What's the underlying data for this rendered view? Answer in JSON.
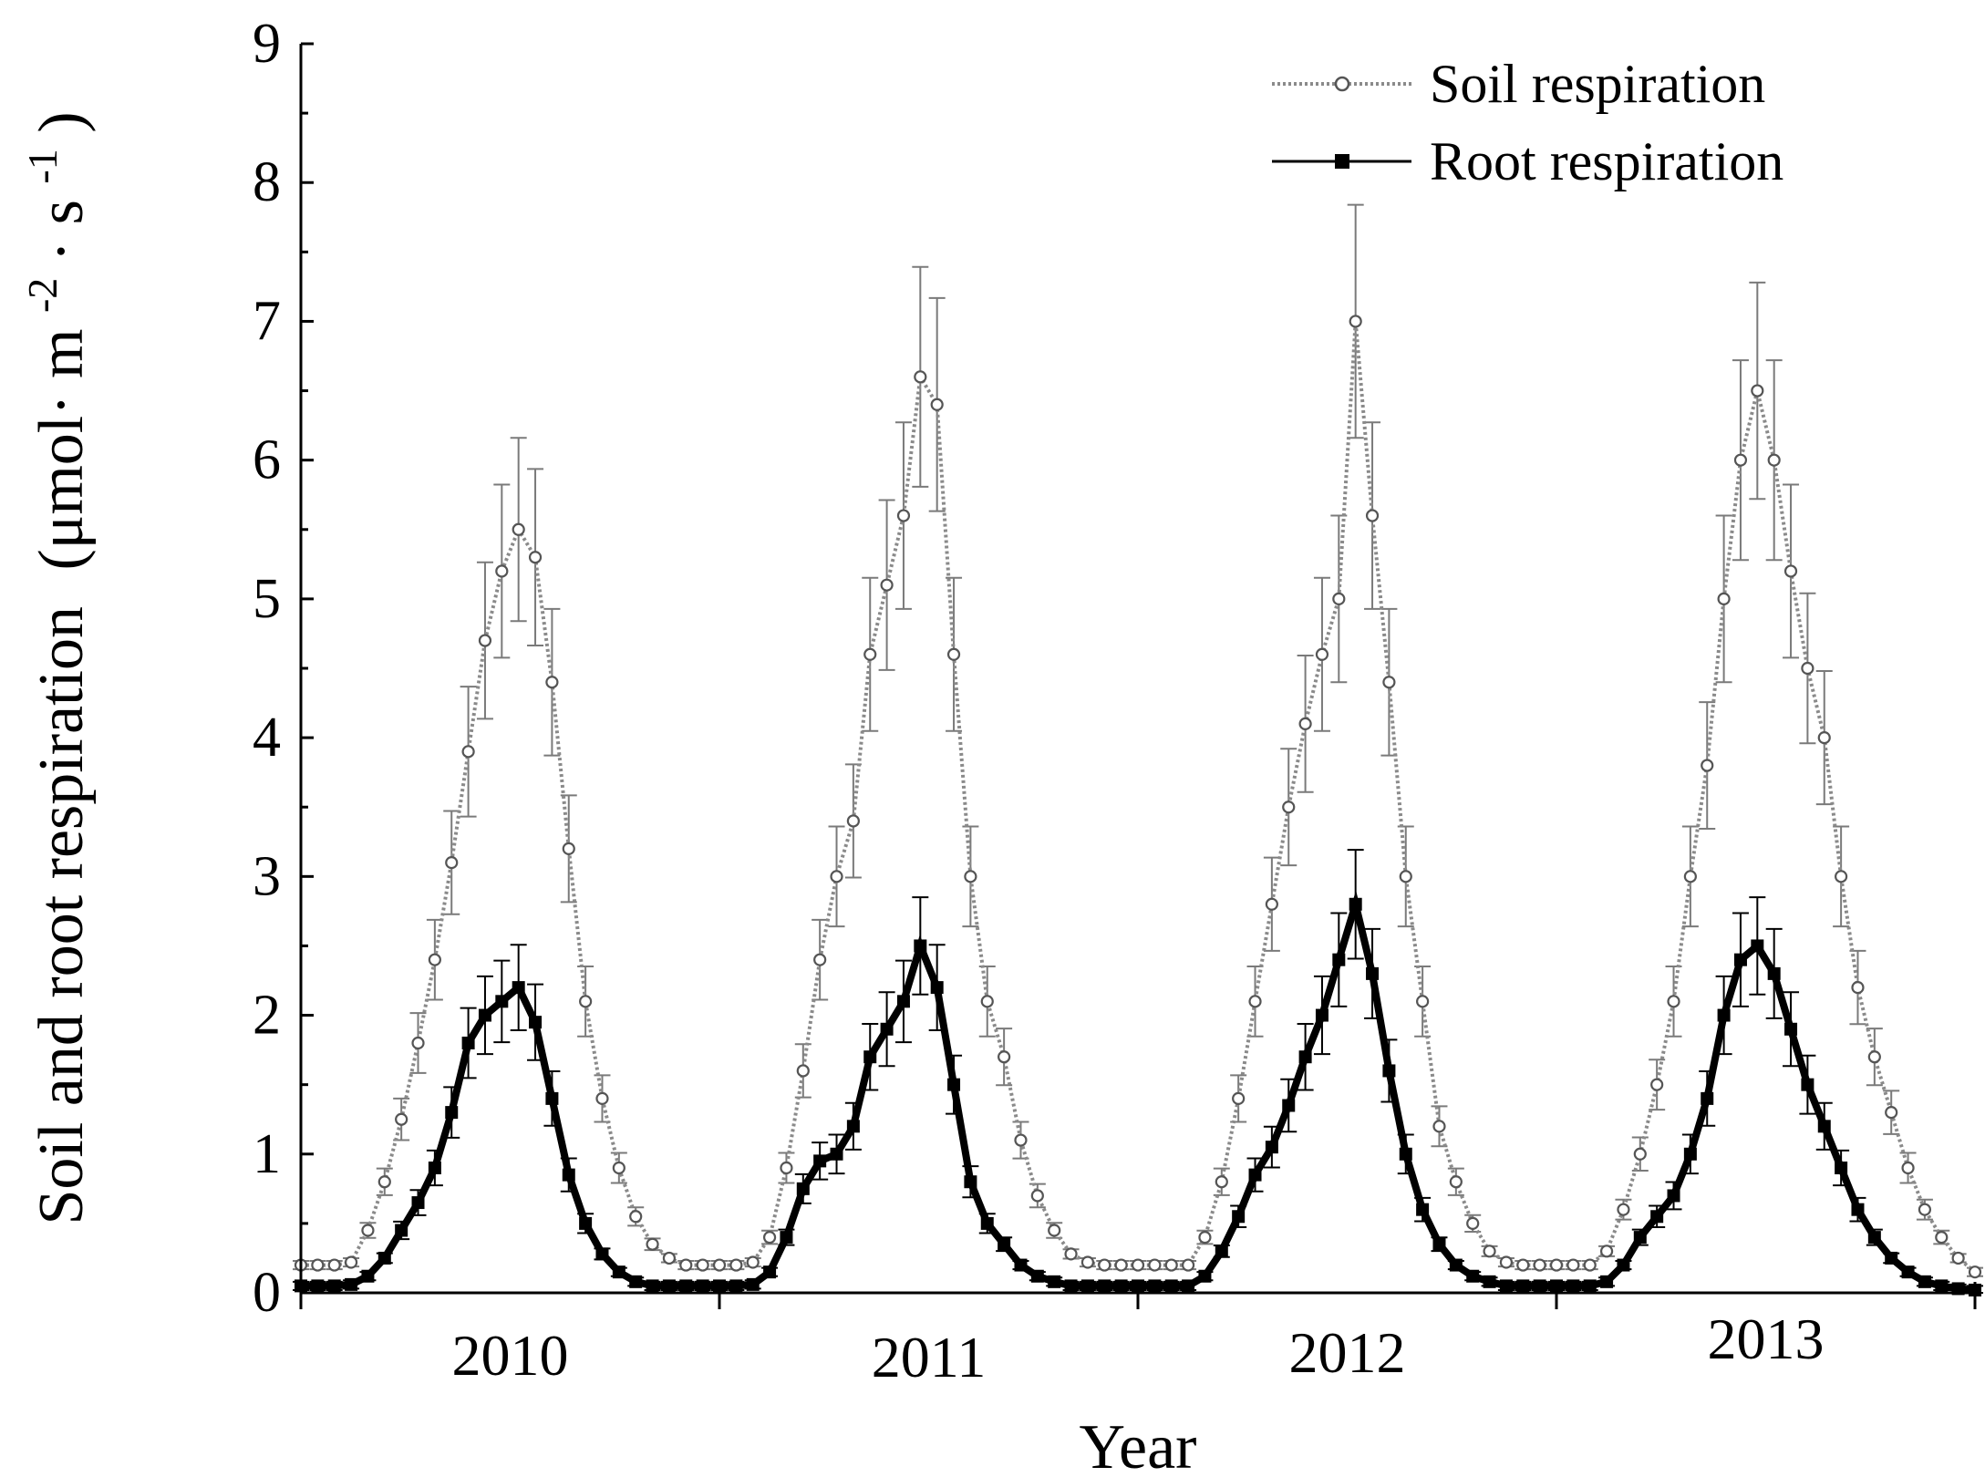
{
  "chart_data": {
    "type": "line",
    "title": "",
    "xlabel": "Year",
    "ylabel": "Soil and root respiration",
    "ylabel_unit": "(μmol· m-2· s-1)",
    "ylabel_unit_parts": {
      "open": "(μmol· m",
      "sup1": "-2",
      "mid": "· s",
      "sup2": "-1",
      "close": ")"
    },
    "ylim": [
      0,
      9
    ],
    "yticks": [
      0,
      1,
      2,
      3,
      4,
      5,
      6,
      7,
      8,
      9
    ],
    "yticks_labels": [
      "0",
      "1",
      "2",
      "3",
      "4",
      "5",
      "6",
      "7",
      "8",
      "9"
    ],
    "xlim": [
      0,
      4
    ],
    "categories": [
      "2010",
      "2011",
      "2012",
      "2013"
    ],
    "grid": false,
    "legend_position": "top-right",
    "series": [
      {
        "name": "Soil respiration",
        "style": "dotted gray line with open circle markers",
        "color": "#8a8a8a",
        "x": [
          0.0,
          0.04,
          0.08,
          0.12,
          0.16,
          0.2,
          0.24,
          0.28,
          0.32,
          0.36,
          0.4,
          0.44,
          0.48,
          0.52,
          0.56,
          0.6,
          0.64,
          0.68,
          0.72,
          0.76,
          0.8,
          0.84,
          0.88,
          0.92,
          0.96,
          1.0,
          1.04,
          1.08,
          1.12,
          1.16,
          1.2,
          1.24,
          1.28,
          1.32,
          1.36,
          1.4,
          1.44,
          1.48,
          1.52,
          1.56,
          1.6,
          1.64,
          1.68,
          1.72,
          1.76,
          1.8,
          1.84,
          1.88,
          1.92,
          1.96,
          2.0,
          2.04,
          2.08,
          2.12,
          2.16,
          2.2,
          2.24,
          2.28,
          2.32,
          2.36,
          2.4,
          2.44,
          2.48,
          2.52,
          2.56,
          2.6,
          2.64,
          2.68,
          2.72,
          2.76,
          2.8,
          2.84,
          2.88,
          2.92,
          2.96,
          3.0,
          3.04,
          3.08,
          3.12,
          3.16,
          3.2,
          3.24,
          3.28,
          3.32,
          3.36,
          3.4,
          3.44,
          3.48,
          3.52,
          3.56,
          3.6,
          3.64,
          3.68,
          3.72,
          3.76,
          3.8,
          3.84,
          3.88,
          3.92,
          3.96,
          4.0
        ],
        "values": [
          0.2,
          0.2,
          0.2,
          0.22,
          0.45,
          0.8,
          1.25,
          1.8,
          2.4,
          3.1,
          3.9,
          4.7,
          5.2,
          5.5,
          5.3,
          4.4,
          3.2,
          2.1,
          1.4,
          0.9,
          0.55,
          0.35,
          0.25,
          0.2,
          0.2,
          0.2,
          0.2,
          0.22,
          0.4,
          0.9,
          1.6,
          2.4,
          3.0,
          3.4,
          4.6,
          5.1,
          5.6,
          6.6,
          6.4,
          4.6,
          3.0,
          2.1,
          1.7,
          1.1,
          0.7,
          0.45,
          0.28,
          0.22,
          0.2,
          0.2,
          0.2,
          0.2,
          0.2,
          0.2,
          0.4,
          0.8,
          1.4,
          2.1,
          2.8,
          3.5,
          4.1,
          4.6,
          5.0,
          7.0,
          5.6,
          4.4,
          3.0,
          2.1,
          1.2,
          0.8,
          0.5,
          0.3,
          0.22,
          0.2,
          0.2,
          0.2,
          0.2,
          0.2,
          0.3,
          0.6,
          1.0,
          1.5,
          2.1,
          3.0,
          3.8,
          5.0,
          6.0,
          6.5,
          6.0,
          5.2,
          4.5,
          4.0,
          3.0,
          2.2,
          1.7,
          1.3,
          0.9,
          0.6,
          0.4,
          0.25,
          0.15
        ]
      },
      {
        "name": "Root respiration",
        "style": "solid black line with filled square markers",
        "color": "#000000",
        "x": [
          0.0,
          0.04,
          0.08,
          0.12,
          0.16,
          0.2,
          0.24,
          0.28,
          0.32,
          0.36,
          0.4,
          0.44,
          0.48,
          0.52,
          0.56,
          0.6,
          0.64,
          0.68,
          0.72,
          0.76,
          0.8,
          0.84,
          0.88,
          0.92,
          0.96,
          1.0,
          1.04,
          1.08,
          1.12,
          1.16,
          1.2,
          1.24,
          1.28,
          1.32,
          1.36,
          1.4,
          1.44,
          1.48,
          1.52,
          1.56,
          1.6,
          1.64,
          1.68,
          1.72,
          1.76,
          1.8,
          1.84,
          1.88,
          1.92,
          1.96,
          2.0,
          2.04,
          2.08,
          2.12,
          2.16,
          2.2,
          2.24,
          2.28,
          2.32,
          2.36,
          2.4,
          2.44,
          2.48,
          2.52,
          2.56,
          2.6,
          2.64,
          2.68,
          2.72,
          2.76,
          2.8,
          2.84,
          2.88,
          2.92,
          2.96,
          3.0,
          3.04,
          3.08,
          3.12,
          3.16,
          3.2,
          3.24,
          3.28,
          3.32,
          3.36,
          3.4,
          3.44,
          3.48,
          3.52,
          3.56,
          3.6,
          3.64,
          3.68,
          3.72,
          3.76,
          3.8,
          3.84,
          3.88,
          3.92,
          3.96,
          4.0
        ],
        "values": [
          0.05,
          0.05,
          0.05,
          0.06,
          0.12,
          0.25,
          0.45,
          0.65,
          0.9,
          1.3,
          1.8,
          2.0,
          2.1,
          2.2,
          1.95,
          1.4,
          0.85,
          0.5,
          0.28,
          0.15,
          0.08,
          0.05,
          0.05,
          0.05,
          0.05,
          0.05,
          0.05,
          0.06,
          0.15,
          0.4,
          0.75,
          0.95,
          1.0,
          1.2,
          1.7,
          1.9,
          2.1,
          2.5,
          2.2,
          1.5,
          0.8,
          0.5,
          0.35,
          0.2,
          0.12,
          0.08,
          0.05,
          0.05,
          0.05,
          0.05,
          0.05,
          0.05,
          0.05,
          0.05,
          0.12,
          0.3,
          0.55,
          0.85,
          1.05,
          1.35,
          1.7,
          2.0,
          2.4,
          2.8,
          2.3,
          1.6,
          1.0,
          0.6,
          0.35,
          0.2,
          0.12,
          0.08,
          0.05,
          0.05,
          0.05,
          0.05,
          0.05,
          0.05,
          0.08,
          0.2,
          0.4,
          0.55,
          0.7,
          1.0,
          1.4,
          2.0,
          2.4,
          2.5,
          2.3,
          1.9,
          1.5,
          1.2,
          0.9,
          0.6,
          0.4,
          0.25,
          0.15,
          0.08,
          0.05,
          0.03,
          0.02
        ]
      }
    ]
  }
}
